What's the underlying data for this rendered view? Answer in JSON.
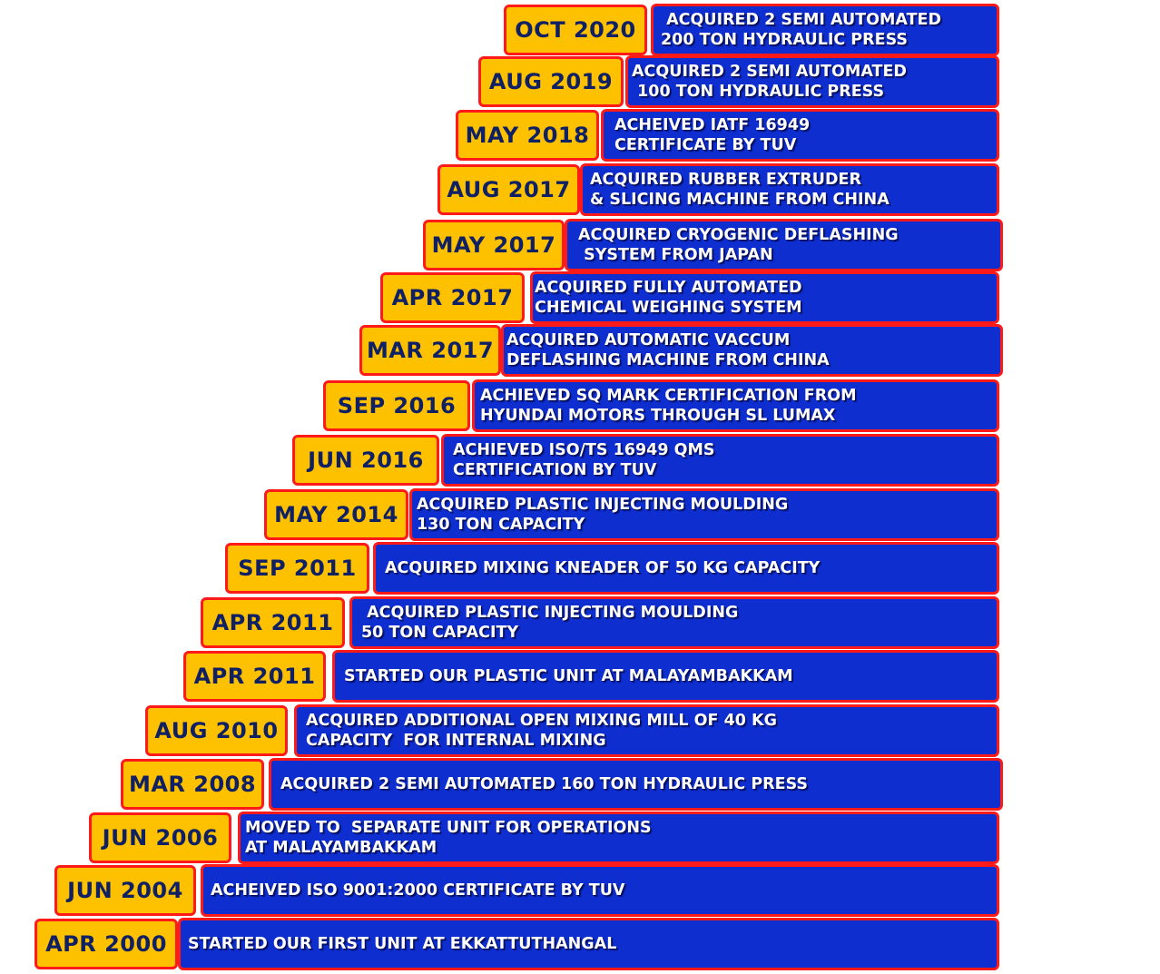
{
  "milestones": [
    {
      "date": "OCT 2020",
      "text": " ACQUIRED 2 SEMI AUTOMATED\n200 TON HYDRAULIC PRESS"
    },
    {
      "date": "AUG 2019",
      "text": "ACQUIRED 2 SEMI AUTOMATED\n 100 TON HYDRAULIC PRESS"
    },
    {
      "date": "MAY 2018",
      "text": "ACHEIVED IATF 16949\nCERTIFICATE BY TUV"
    },
    {
      "date": "AUG 2017",
      "text": "ACQUIRED RUBBER EXTRUDER\n& SLICING MACHINE FROM CHINA"
    },
    {
      "date": "MAY 2017",
      "text": "ACQUIRED CRYOGENIC DEFLASHING\n SYSTEM FROM JAPAN"
    },
    {
      "date": "APR 2017",
      "text": "ACQUIRED FULLY AUTOMATED\nCHEMICAL WEIGHING SYSTEM"
    },
    {
      "date": "MAR 2017",
      "text": "ACQUIRED AUTOMATIC VACCUM\nDEFLASHING MACHINE FROM CHINA"
    },
    {
      "date": "SEP 2016",
      "text": "ACHIEVED SQ MARK CERTIFICATION FROM\nHYUNDAI MOTORS THROUGH SL LUMAX"
    },
    {
      "date": "JUN 2016",
      "text": "ACHIEVED ISO/TS 16949 QMS\nCERTIFICATION BY TUV"
    },
    {
      "date": "MAY 2014",
      "text": "ACQUIRED PLASTIC INJECTING MOULDING\n130 TON CAPACITY"
    },
    {
      "date": "SEP 2011",
      "text": "ACQUIRED MIXING KNEADER OF 50 KG CAPACITY"
    },
    {
      "date": "APR 2011",
      "text": " ACQUIRED PLASTIC INJECTING MOULDING\n50 TON CAPACITY"
    },
    {
      "date": "APR 2011",
      "text": "STARTED OUR PLASTIC UNIT AT MALAYAMBAKKAM"
    },
    {
      "date": "AUG 2010",
      "text": "ACQUIRED ADDITIONAL OPEN MIXING MILL OF 40 KG\nCAPACITY  FOR INTERNAL MIXING"
    },
    {
      "date": "MAR 2008",
      "text": "ACQUIRED 2 SEMI AUTOMATED 160 TON HYDRAULIC PRESS"
    },
    {
      "date": "JUN 2006",
      "text": "MOVED TO  SEPARATE UNIT FOR OPERATIONS\nAT MALAYAMBAKKAM"
    },
    {
      "date": "JUN 2004",
      "text": "ACHEIVED ISO 9001:2000 CERTIFICATE BY TUV"
    },
    {
      "date": "APR 2000",
      "text": "STARTED OUR FIRST UNIT AT EKKATTUTHANGAL"
    }
  ],
  "colors": {
    "date_fill": "#fdc100",
    "date_text": "#0f2164",
    "desc_fill": "#0e2ed0",
    "desc_text": "#ffffff",
    "border": "#ff1a1a"
  }
}
